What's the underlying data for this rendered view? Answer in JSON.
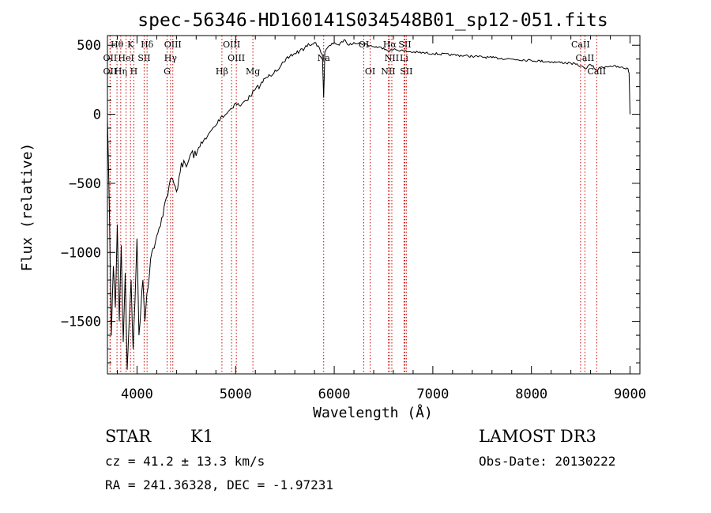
{
  "chart_data": {
    "type": "line",
    "title": "spec-56346-HD160141S034548B01_sp12-051.fits",
    "xlabel": "Wavelength (Å)",
    "ylabel": "Flux (relative)",
    "xlim": [
      3700,
      9100
    ],
    "ylim": [
      -1880,
      570
    ],
    "xticks": [
      4000,
      5000,
      6000,
      7000,
      8000,
      9000
    ],
    "yticks": [
      -1500,
      -1000,
      -500,
      0,
      500
    ],
    "series": [
      {
        "name": "spectrum",
        "x": [
          3700,
          3720,
          3740,
          3760,
          3780,
          3800,
          3820,
          3840,
          3860,
          3880,
          3900,
          3920,
          3940,
          3960,
          3980,
          4000,
          4020,
          4040,
          4060,
          4080,
          4100,
          4150,
          4200,
          4250,
          4300,
          4350,
          4400,
          4450,
          4500,
          4550,
          4600,
          4650,
          4700,
          4750,
          4800,
          4850,
          4900,
          4950,
          5000,
          5050,
          5100,
          5150,
          5200,
          5250,
          5300,
          5350,
          5400,
          5450,
          5500,
          5550,
          5600,
          5650,
          5700,
          5750,
          5800,
          5850,
          5880,
          5893,
          5905,
          5930,
          6000,
          6050,
          6100,
          6150,
          6200,
          6300,
          6400,
          6500,
          6563,
          6600,
          6700,
          6800,
          7000,
          7200,
          7400,
          7600,
          7800,
          8000,
          8200,
          8400,
          8500,
          8542,
          8600,
          8662,
          8700,
          8800,
          8900,
          8980,
          8990,
          9000
        ],
        "y": [
          -30,
          -700,
          -1600,
          -1100,
          -1400,
          -800,
          -1500,
          -950,
          -1650,
          -1150,
          -1850,
          -1500,
          -1200,
          -1700,
          -1350,
          -900,
          -1600,
          -1400,
          -1200,
          -1500,
          -1300,
          -1000,
          -880,
          -750,
          -600,
          -460,
          -560,
          -350,
          -380,
          -280,
          -300,
          -200,
          -180,
          -120,
          -80,
          -20,
          0,
          40,
          80,
          60,
          100,
          130,
          180,
          210,
          260,
          280,
          320,
          340,
          380,
          420,
          440,
          460,
          480,
          500,
          520,
          480,
          430,
          120,
          450,
          480,
          520,
          500,
          540,
          500,
          520,
          510,
          490,
          480,
          460,
          470,
          460,
          450,
          440,
          430,
          420,
          410,
          400,
          390,
          380,
          370,
          350,
          330,
          360,
          320,
          340,
          350,
          340,
          330,
          300,
          0
        ]
      }
    ],
    "spectral_lines": [
      {
        "label": "Hθ",
        "wavelength": 3797,
        "row": 0
      },
      {
        "label": "K",
        "wavelength": 3934,
        "row": 0
      },
      {
        "label": "Hδ",
        "wavelength": 4102,
        "row": 0
      },
      {
        "label": "OIII",
        "wavelength": 4363,
        "row": 0
      },
      {
        "label": "OIII",
        "wavelength": 4959,
        "row": 0
      },
      {
        "label": "OI",
        "wavelength": 6300,
        "row": 0
      },
      {
        "label": "Hα",
        "wavelength": 6563,
        "row": 0
      },
      {
        "label": "SII",
        "wavelength": 6716,
        "row": 0
      },
      {
        "label": "CaII",
        "wavelength": 8498,
        "row": 0
      },
      {
        "label": "OII",
        "wavelength": 3727,
        "row": 1
      },
      {
        "label": "HeI",
        "wavelength": 3889,
        "row": 1
      },
      {
        "label": "SII",
        "wavelength": 4072,
        "row": 1
      },
      {
        "label": "Hγ",
        "wavelength": 4340,
        "row": 1
      },
      {
        "label": "OIII",
        "wavelength": 5007,
        "row": 1
      },
      {
        "label": "Na",
        "wavelength": 5893,
        "row": 1
      },
      {
        "label": "NII",
        "wavelength": 6584,
        "row": 1
      },
      {
        "label": "Li",
        "wavelength": 6708,
        "row": 1
      },
      {
        "label": "CaII",
        "wavelength": 8542,
        "row": 1
      },
      {
        "label": "OII",
        "wavelength": 3727,
        "row": 2
      },
      {
        "label": "Hη",
        "wavelength": 3835,
        "row": 2
      },
      {
        "label": "H",
        "wavelength": 3968,
        "row": 2
      },
      {
        "label": "G",
        "wavelength": 4305,
        "row": 2
      },
      {
        "label": "Hβ",
        "wavelength": 4861,
        "row": 2
      },
      {
        "label": "Mg",
        "wavelength": 5175,
        "row": 2
      },
      {
        "label": "OI",
        "wavelength": 6364,
        "row": 2
      },
      {
        "label": "NII",
        "wavelength": 6548,
        "row": 2
      },
      {
        "label": "SII",
        "wavelength": 6731,
        "row": 2
      },
      {
        "label": "CaII",
        "wavelength": 8662,
        "row": 2
      }
    ],
    "line_color": "#000000",
    "marker_color": "#cc0000"
  },
  "info": {
    "object_type": "STAR",
    "subclass": "K1",
    "survey": "LAMOST DR3",
    "cz": "cz = 41.2 ± 13.3 km/s",
    "obs_date": "Obs-Date: 20130222",
    "coords": "RA = 241.36328, DEC =  -1.97231"
  }
}
